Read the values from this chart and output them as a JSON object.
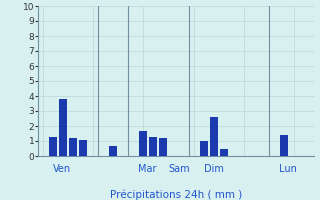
{
  "title": "Précipitations 24h ( mm )",
  "background_color": "#d8f0f0",
  "grid_color": "#b8d8d8",
  "bar_color": "#1a3aad",
  "ylim": [
    0,
    10
  ],
  "yticks": [
    0,
    1,
    2,
    3,
    4,
    5,
    6,
    7,
    8,
    9,
    10
  ],
  "day_labels": [
    "Ven",
    "Mar",
    "Sam",
    "Dim",
    "Lun"
  ],
  "bar_positions": [
    1,
    2,
    3,
    4,
    7,
    10,
    11,
    12,
    16,
    17,
    18,
    24
  ],
  "bar_heights": [
    1.3,
    3.8,
    1.2,
    1.1,
    0.7,
    1.7,
    1.3,
    1.2,
    1.0,
    2.6,
    0.5,
    1.4
  ],
  "vline_positions": [
    5.5,
    8.5,
    14.5,
    22.5
  ],
  "xlim": [
    -0.5,
    27
  ],
  "total_slots": 27,
  "figsize": [
    3.2,
    2.0
  ],
  "dpi": 100
}
